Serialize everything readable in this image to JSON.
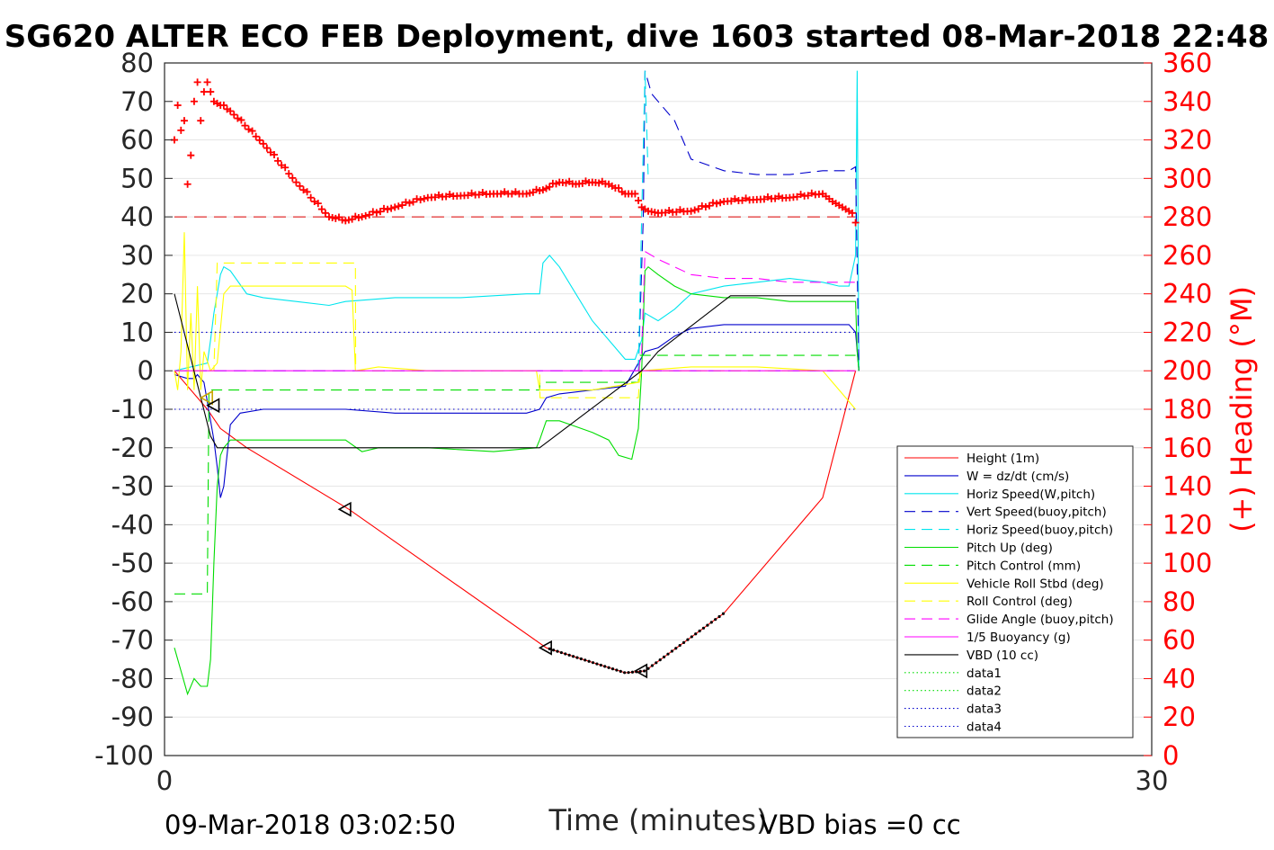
{
  "title": "SG620 ALTER ECO FEB Deployment, dive 1603 started 08-Mar-2018 22:48",
  "footer_left": "09-Mar-2018 03:02:50",
  "footer_right": "VBD bias =0 cc",
  "chart_data": {
    "type": "line",
    "title": "SG620 ALTER ECO FEB Deployment, dive 1603 started 08-Mar-2018 22:48",
    "xlabel": "Time (minutes)",
    "ylabel": "",
    "y2label": "(+) Heading (°M)",
    "xlim": [
      0,
      30
    ],
    "ylim": [
      -100,
      80
    ],
    "y2lim": [
      0,
      360
    ],
    "x_ticks": [
      0,
      30
    ],
    "y_ticks": [
      80,
      70,
      60,
      50,
      40,
      30,
      20,
      10,
      0,
      -10,
      -20,
      -30,
      -40,
      -50,
      -60,
      -70,
      -80,
      -90,
      -100
    ],
    "y2_ticks": [
      360,
      340,
      320,
      300,
      280,
      260,
      240,
      220,
      200,
      180,
      160,
      140,
      120,
      100,
      80,
      60,
      40,
      20,
      0
    ],
    "grid": "horizontal",
    "legend_position": "bottom-right",
    "series": [
      {
        "name": "Height (1m)",
        "color": "#ff0000",
        "dash": "solid",
        "x": [
          0.3,
          1.3,
          1.7,
          2.5,
          5.6,
          11.6,
          14.0,
          14.6,
          17.0,
          20.0,
          21.0
        ],
        "y": [
          0,
          -10,
          -15,
          -20,
          -36,
          -72,
          -78.5,
          -78,
          -63,
          -33,
          0
        ]
      },
      {
        "name": "W = dz/dt (cm/s)",
        "color": "#0000cc",
        "dash": "solid",
        "x": [
          0.3,
          0.7,
          0.9,
          1.0,
          1.2,
          1.5,
          1.6,
          1.7,
          1.8,
          1.9,
          2.0,
          2.3,
          3.0,
          4.0,
          5.5,
          7.0,
          8.5,
          10.0,
          11.0,
          11.4,
          11.6,
          12.0,
          13.0,
          14.0,
          14.4,
          14.6,
          15.0,
          15.5,
          16.0,
          17.0,
          18.5,
          20.0,
          20.8,
          21.0,
          21.1
        ],
        "y": [
          -1,
          -2,
          -2,
          -1,
          -3,
          -18,
          -25,
          -33,
          -30,
          -22,
          -14,
          -11,
          -10,
          -10,
          -10,
          -11,
          -11,
          -11,
          -11,
          -10,
          -7,
          -6,
          -5,
          -4,
          2,
          5,
          6,
          9,
          11,
          12,
          12,
          12,
          12,
          10,
          0
        ]
      },
      {
        "name": "Horiz Speed(W,pitch)",
        "color": "#00e5ee",
        "dash": "solid",
        "x": [
          0.3,
          1.3,
          1.4,
          1.5,
          1.6,
          1.7,
          1.8,
          2.0,
          2.5,
          3.0,
          4.0,
          5.0,
          5.5,
          7.0,
          9.0,
          11.0,
          11.4,
          11.5,
          11.7,
          12.0,
          12.5,
          13.0,
          13.5,
          14.0,
          14.3,
          14.5,
          14.6,
          15.0,
          15.5,
          16.0,
          17.0,
          18.0,
          19.0,
          20.0,
          20.5,
          20.8,
          21.0,
          21.05,
          21.1
        ],
        "y": [
          0,
          2,
          8,
          15,
          20,
          25,
          27,
          26,
          20,
          19,
          18,
          17,
          18,
          19,
          19,
          20,
          20,
          28,
          30,
          27,
          20,
          13,
          8,
          3,
          3,
          8,
          15,
          13,
          16,
          20,
          22,
          23,
          24,
          23,
          22,
          22,
          30,
          78,
          0
        ]
      },
      {
        "name": "Vert Speed(buoy,pitch)",
        "color": "#0000cc",
        "dash": "longdash",
        "x": [
          14.4,
          14.55,
          14.6,
          14.8,
          15.0,
          15.5,
          16.0,
          17.0,
          18.0,
          19.0,
          20.0,
          20.5,
          20.8,
          21.0,
          21.1
        ],
        "y": [
          0,
          40,
          78,
          72,
          70,
          65,
          55,
          52,
          51,
          51,
          52,
          52,
          52,
          53,
          0
        ]
      },
      {
        "name": "Horiz Speed(buoy,pitch)",
        "color": "#00e5ee",
        "dash": "longdash",
        "x": [
          14.4,
          14.5,
          14.6,
          14.7
        ],
        "y": [
          0,
          40,
          78,
          50
        ]
      },
      {
        "name": "Pitch Up (deg)",
        "color": "#00dd00",
        "dash": "solid",
        "x": [
          0.3,
          0.5,
          0.7,
          0.9,
          1.1,
          1.3,
          1.4,
          1.5,
          1.6,
          1.7,
          1.8,
          2.0,
          2.5,
          3.0,
          4.0,
          5.5,
          6.0,
          6.5,
          8.0,
          10.0,
          11.3,
          11.4,
          11.6,
          12.0,
          13.0,
          13.5,
          13.8,
          14.2,
          14.4,
          14.5,
          14.6,
          14.7,
          15.0,
          15.5,
          16.0,
          17.0,
          18.0,
          19.0,
          20.0,
          20.5,
          21.0,
          21.05,
          21.1
        ],
        "y": [
          -72,
          -78,
          -84,
          -80,
          -82,
          -82,
          -75,
          -50,
          -30,
          -22,
          -20,
          -18,
          -18,
          -18,
          -18,
          -18,
          -21,
          -20,
          -20,
          -21,
          -20,
          -18,
          -13,
          -13,
          -16,
          -18,
          -22,
          -23,
          -15,
          0,
          26,
          27,
          25,
          22,
          20,
          19,
          19,
          18,
          18,
          18,
          18,
          5,
          0
        ]
      },
      {
        "name": "Pitch Control (mm)",
        "color": "#00dd00",
        "dash": "longdash",
        "x": [
          0.3,
          1.3,
          1.35,
          1.6,
          11.4,
          11.41,
          14.4,
          14.45,
          21.0
        ],
        "y": [
          -58,
          -58,
          -5,
          -5,
          -5,
          -3,
          -3,
          4,
          4
        ]
      },
      {
        "name": "Vehicle Roll Stbd (deg)",
        "color": "#ffff00",
        "dash": "solid",
        "x": [
          0.3,
          0.4,
          0.5,
          0.6,
          0.7,
          0.8,
          0.9,
          1.0,
          1.1,
          1.2,
          1.4,
          1.6,
          1.8,
          2.0,
          4.0,
          5.5,
          5.7,
          5.8,
          6.5,
          8.0,
          10.0,
          11.3,
          11.4,
          13.0,
          14.4,
          14.5,
          16.0,
          18.0,
          20.0,
          21.0
        ],
        "y": [
          0,
          -5,
          5,
          36,
          -5,
          15,
          -5,
          22,
          -5,
          5,
          0,
          2,
          20,
          22,
          22,
          22,
          21,
          0,
          1,
          0,
          0,
          0,
          -5,
          -5,
          -3,
          0,
          1,
          1,
          0,
          -10
        ]
      },
      {
        "name": "Roll Control (deg)",
        "color": "#ffff00",
        "dash": "longdash",
        "x": [
          0.3,
          1.5,
          1.6,
          5.8,
          5.81,
          11.4,
          11.41,
          14.4,
          14.45,
          21.0
        ],
        "y": [
          0,
          0,
          28,
          28,
          0,
          0,
          -7,
          -7,
          0,
          0
        ]
      },
      {
        "name": "Glide Angle (buoy,pitch)",
        "color": "#ff00ff",
        "dash": "longdash",
        "x": [
          14.4,
          14.5,
          14.6,
          15.0,
          15.5,
          16.0,
          17.0,
          18.0,
          19.0,
          20.0,
          21.0
        ],
        "y": [
          0,
          5,
          31,
          29,
          27,
          25,
          24,
          24,
          23,
          23,
          23
        ]
      },
      {
        "name": "1/5 Buoyancy (g)",
        "color": "#ff00ff",
        "dash": "solid",
        "x": [
          0.3,
          21.0
        ],
        "y": [
          0,
          0
        ]
      },
      {
        "name": "VBD (10 cc)",
        "color": "#000000",
        "dash": "solid",
        "x": [
          0.3,
          1.4,
          1.6,
          11.4,
          14.5,
          15.0,
          17.2,
          21.0
        ],
        "y": [
          20,
          -17,
          -20,
          -20,
          0,
          5,
          19.5,
          19.5
        ]
      },
      {
        "name": "data1",
        "color": "#00dd00",
        "dash": "dotted",
        "x": [],
        "y": []
      },
      {
        "name": "data2",
        "color": "#00dd00",
        "dash": "dotted",
        "x": [],
        "y": []
      },
      {
        "name": "data3",
        "color": "#0000cc",
        "dash": "dotted",
        "x": [
          0.3,
          21.0
        ],
        "y": [
          10,
          10
        ]
      },
      {
        "name": "data4",
        "color": "#0000cc",
        "dash": "dotted",
        "x": [
          0.3,
          21.0
        ],
        "y": [
          -10,
          -10
        ]
      }
    ],
    "reference_lines": [
      {
        "color": "#0000ff",
        "dash": "longdash",
        "axis": "left",
        "y": 0
      },
      {
        "color": "#dd0000",
        "dash": "longdash",
        "axis": "right",
        "y": 280
      }
    ],
    "heading_markers": {
      "color": "#ff0000",
      "axis": "right",
      "marker": "+",
      "x": [
        0.3,
        0.4,
        0.5,
        0.6,
        0.7,
        0.8,
        0.9,
        1.0,
        1.1,
        1.2,
        1.3,
        1.4,
        1.5,
        2.0,
        3.0,
        4.0,
        5.0,
        5.5,
        6.0,
        7.0,
        8.0,
        9.0,
        10.0,
        11.0,
        11.5,
        12.0,
        12.5,
        13.0,
        13.5,
        14.0,
        14.3,
        14.5,
        14.7,
        15.0,
        16.0,
        17.0,
        18.0,
        19.0,
        20.0,
        20.3,
        20.6,
        20.9,
        21.0
      ],
      "y": [
        320,
        338,
        325,
        330,
        297,
        312,
        340,
        350,
        330,
        345,
        350,
        345,
        340,
        335,
        318,
        298,
        280,
        278,
        280,
        285,
        290,
        291,
        292,
        292,
        294,
        298,
        297,
        298,
        297,
        292,
        292,
        285,
        283,
        282,
        283,
        288,
        289,
        290,
        292,
        288,
        285,
        282,
        277
      ]
    },
    "annotation_markers": {
      "height_dots": {
        "color": "#000000",
        "x_range": [
          11.7,
          17.0
        ]
      },
      "triangles": [
        {
          "x": 1.3,
          "y": -7,
          "color": "#c8a400"
        },
        {
          "x": 1.5,
          "y": -9,
          "color": "#000000"
        },
        {
          "x": 5.5,
          "y": -36,
          "color": "#000000"
        },
        {
          "x": 11.6,
          "y": -72,
          "color": "#000000"
        },
        {
          "x": 14.5,
          "y": -78,
          "color": "#000000"
        }
      ]
    }
  }
}
